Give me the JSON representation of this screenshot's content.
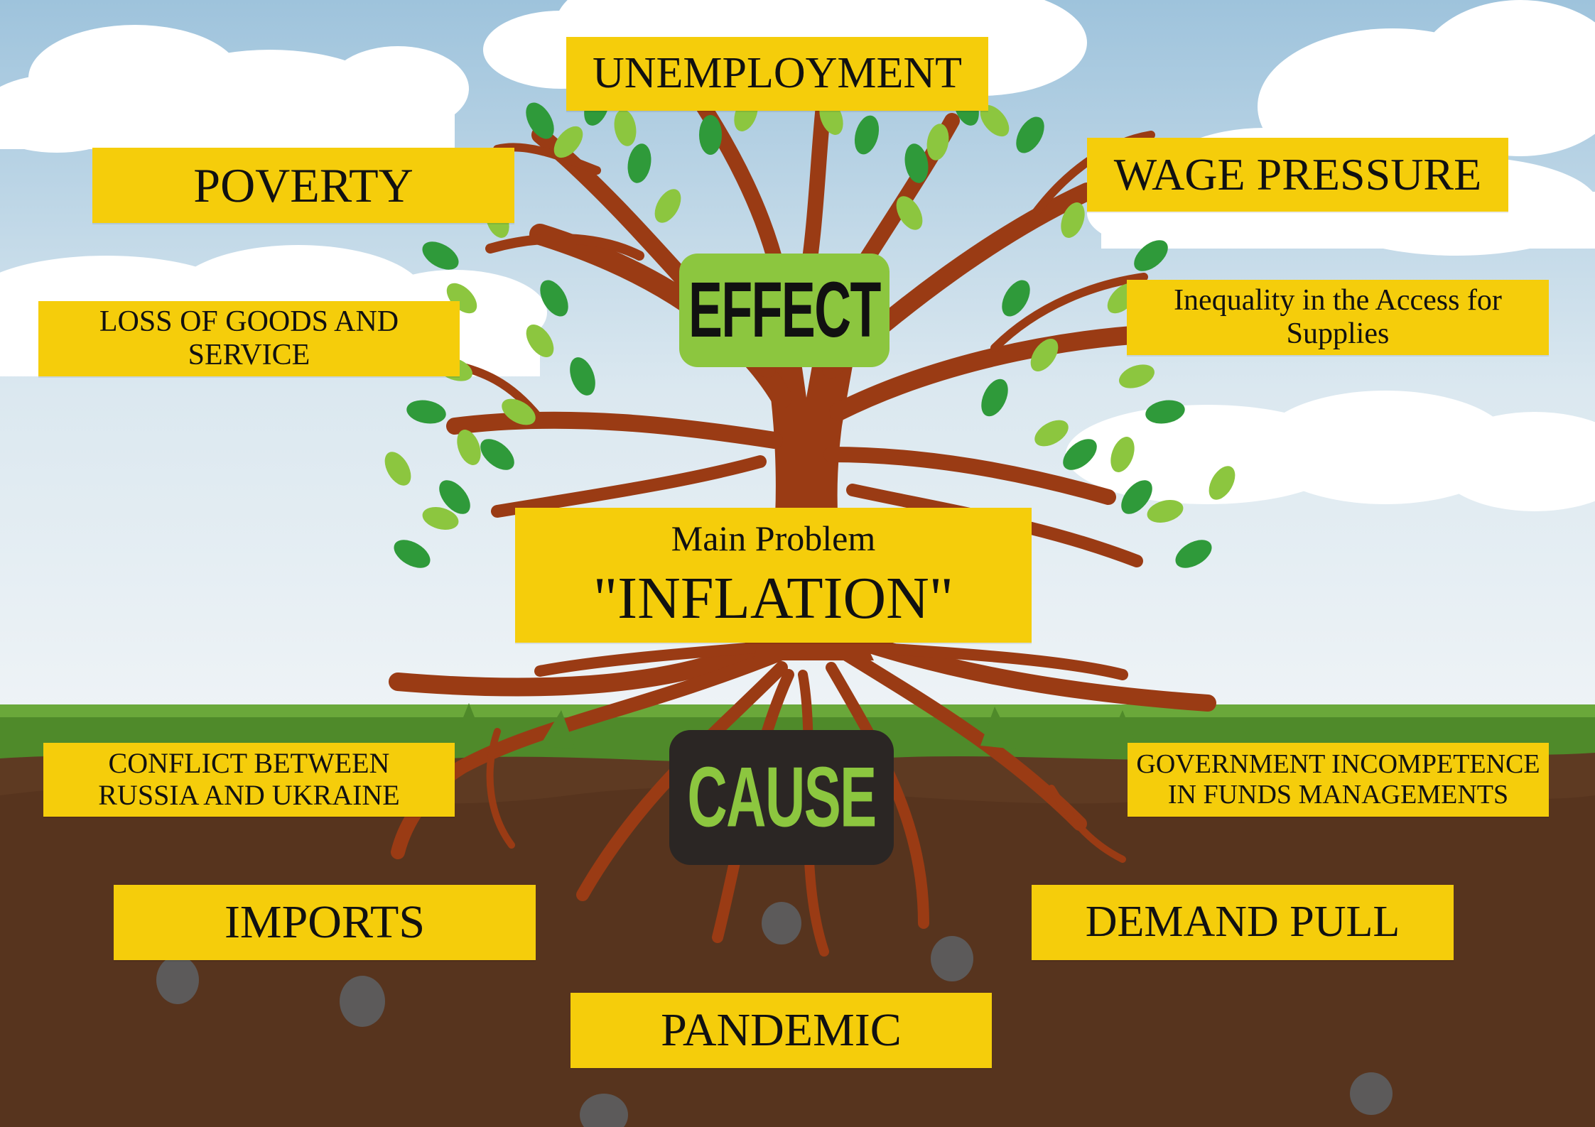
{
  "badges": {
    "effect": "EFFECT",
    "cause": "CAUSE"
  },
  "main_problem": {
    "caption": "Main Problem",
    "title": "\"INFLATION\""
  },
  "effects": {
    "unemployment": "UNEMPLOYMENT",
    "poverty": "POVERTY",
    "wage_pressure": "WAGE PRESSURE",
    "loss_line1": "LOSS OF GOODS AND",
    "loss_line2": "SERVICE",
    "inequality_line1": "Inequality in the Access for",
    "inequality_line2": "Supplies"
  },
  "causes": {
    "conflict_line1": "CONFLICT BETWEEN",
    "conflict_line2": "RUSSIA AND UKRAINE",
    "government_line1": "GOVERNMENT INCOMPETENCE",
    "government_line2": "IN FUNDS MANAGEMENTS",
    "imports": "IMPORTS",
    "demand_pull": "DEMAND PULL",
    "pandemic": "PANDEMIC"
  },
  "colors": {
    "sky": "#d6e4ee",
    "cloud": "#ffffff",
    "grass": "#4f8a2a",
    "soil": "#5e3a22",
    "trunk": "#9a3b14",
    "leaf_dark": "#2f9a3a",
    "leaf_light": "#8cc63f",
    "label": "#f5cd0b",
    "effect_badge": "#8cc63f",
    "cause_badge": "#2b2624"
  }
}
